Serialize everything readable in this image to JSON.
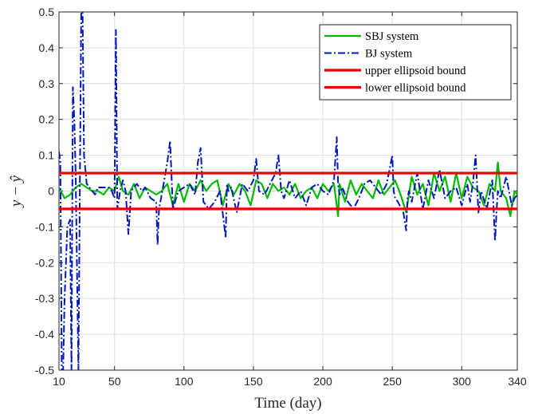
{
  "chart_data": {
    "type": "line",
    "xlabel": "Time (day)",
    "ylabel": "y − ŷ",
    "xlim": [
      10,
      340
    ],
    "ylim": [
      -0.5,
      0.5
    ],
    "xticks": [
      10,
      50,
      100,
      150,
      200,
      250,
      300,
      340
    ],
    "yticks": [
      -0.5,
      -0.4,
      -0.3,
      -0.2,
      -0.1,
      0,
      0.1,
      0.2,
      0.3,
      0.4,
      0.5
    ],
    "ytick_labels": [
      "-0.5",
      "-0.4",
      "-0.3",
      "-0.2",
      "-0.1",
      "0",
      "0.1",
      "0.2",
      "0.3",
      "0.4",
      "0.5"
    ],
    "grid": true,
    "legend_position": "top-right",
    "series": [
      {
        "name": "SBJ system",
        "color": "#00bb00",
        "style": "solid",
        "x": [
          10,
          14,
          18,
          22,
          26,
          30,
          34,
          38,
          42,
          46,
          50,
          53,
          56,
          60,
          64,
          68,
          72,
          76,
          80,
          84,
          88,
          92,
          96,
          100,
          104,
          108,
          112,
          116,
          120,
          124,
          128,
          132,
          136,
          140,
          144,
          148,
          152,
          156,
          160,
          164,
          168,
          172,
          176,
          180,
          184,
          188,
          192,
          196,
          200,
          204,
          208,
          211,
          212,
          216,
          220,
          224,
          228,
          232,
          236,
          240,
          244,
          248,
          252,
          256,
          260,
          264,
          268,
          272,
          276,
          280,
          284,
          288,
          292,
          296,
          300,
          304,
          308,
          312,
          316,
          320,
          324,
          326,
          328,
          332,
          335,
          338,
          340
        ],
        "y": [
          0.01,
          -0.02,
          -0.01,
          0.01,
          0.02,
          0.01,
          0.0,
          0.0,
          -0.01,
          0.01,
          0.0,
          0.04,
          0.0,
          -0.01,
          0.02,
          -0.02,
          0.01,
          0.0,
          -0.01,
          0.0,
          0.02,
          -0.04,
          0.02,
          -0.03,
          0.02,
          0.0,
          0.03,
          0.0,
          0.02,
          0.03,
          -0.04,
          0.02,
          -0.01,
          0.02,
          0.0,
          -0.04,
          0.03,
          0.02,
          -0.02,
          0.02,
          0.0,
          0.01,
          -0.01,
          0.02,
          -0.02,
          0.0,
          0.01,
          -0.02,
          0.02,
          0.0,
          0.02,
          -0.07,
          0.02,
          -0.03,
          0.03,
          -0.01,
          0.02,
          0.0,
          -0.02,
          0.03,
          -0.01,
          0.01,
          0.03,
          -0.01,
          -0.06,
          0.04,
          -0.01,
          0.02,
          -0.04,
          0.05,
          0.0,
          0.04,
          -0.03,
          0.05,
          -0.02,
          0.04,
          0.01,
          0.0,
          -0.04,
          0.02,
          0.0,
          0.08,
          0.0,
          -0.02,
          -0.07,
          0.0,
          -0.01
        ]
      },
      {
        "name": "BJ system",
        "color": "#0018b8",
        "style": "dashdot",
        "x": [
          10,
          11,
          12,
          13,
          14,
          16,
          18,
          19,
          20,
          21,
          22,
          24,
          26,
          27,
          28,
          30,
          32,
          34,
          36,
          38,
          42,
          46,
          48,
          50,
          51,
          52,
          54,
          56,
          58,
          60,
          62,
          66,
          70,
          72,
          76,
          80,
          81,
          82,
          84,
          88,
          90,
          92,
          96,
          100,
          104,
          108,
          110,
          112,
          114,
          118,
          122,
          126,
          130,
          131,
          132,
          134,
          138,
          142,
          146,
          150,
          152,
          154,
          158,
          162,
          166,
          168,
          170,
          172,
          176,
          180,
          184,
          188,
          192,
          196,
          200,
          204,
          208,
          210,
          211,
          212,
          214,
          218,
          222,
          226,
          230,
          234,
          238,
          242,
          246,
          250,
          251,
          252,
          254,
          258,
          260,
          261,
          262,
          264,
          268,
          272,
          276,
          280,
          284,
          288,
          292,
          296,
          300,
          304,
          306,
          308,
          310,
          312,
          314,
          318,
          322,
          324,
          325,
          326,
          328,
          332,
          335,
          336,
          338,
          340
        ],
        "y": [
          0.11,
          0.08,
          -0.5,
          -0.5,
          -0.3,
          -0.1,
          -0.08,
          -0.5,
          0.29,
          0.2,
          0.05,
          -0.5,
          0.5,
          0.5,
          0.1,
          0.02,
          0.01,
          0.0,
          -0.01,
          0.01,
          0.01,
          0.01,
          0.0,
          -0.02,
          0.45,
          -0.05,
          0.0,
          0.03,
          0.0,
          -0.12,
          0.0,
          0.02,
          0.0,
          0.01,
          -0.02,
          -0.03,
          -0.15,
          -0.05,
          -0.01,
          0.08,
          0.14,
          -0.05,
          0.0,
          0.01,
          0.02,
          -0.01,
          0.08,
          0.12,
          -0.03,
          -0.05,
          -0.03,
          0.0,
          -0.13,
          0.02,
          0.0,
          0.01,
          -0.06,
          0.02,
          0.0,
          0.03,
          0.09,
          0.0,
          -0.01,
          0.02,
          0.05,
          0.1,
          0.0,
          -0.02,
          0.03,
          -0.02,
          0.0,
          -0.04,
          0.01,
          0.02,
          0.0,
          -0.01,
          0.03,
          0.15,
          0.02,
          -0.01,
          0.01,
          -0.03,
          -0.05,
          -0.02,
          0.02,
          0.03,
          0.01,
          -0.01,
          0.02,
          0.1,
          0.0,
          -0.02,
          -0.03,
          -0.06,
          -0.11,
          -0.02,
          0.0,
          -0.03,
          0.05,
          -0.05,
          0.03,
          -0.02,
          0.06,
          -0.02,
          0.0,
          0.01,
          -0.04,
          0.02,
          -0.03,
          0.02,
          0.1,
          -0.06,
          0.0,
          -0.05,
          0.03,
          -0.14,
          -0.06,
          0.0,
          -0.02,
          0.04,
          -0.02,
          -0.04,
          -0.02,
          -0.01
        ]
      },
      {
        "name": "upper ellipsoid bound",
        "color": "#ee0000",
        "style": "solid",
        "x": [
          10,
          340
        ],
        "y": [
          0.05,
          0.05
        ]
      },
      {
        "name": "lower ellipsoid bound",
        "color": "#ee0000",
        "style": "solid",
        "x": [
          10,
          340
        ],
        "y": [
          -0.05,
          -0.05
        ]
      }
    ]
  }
}
